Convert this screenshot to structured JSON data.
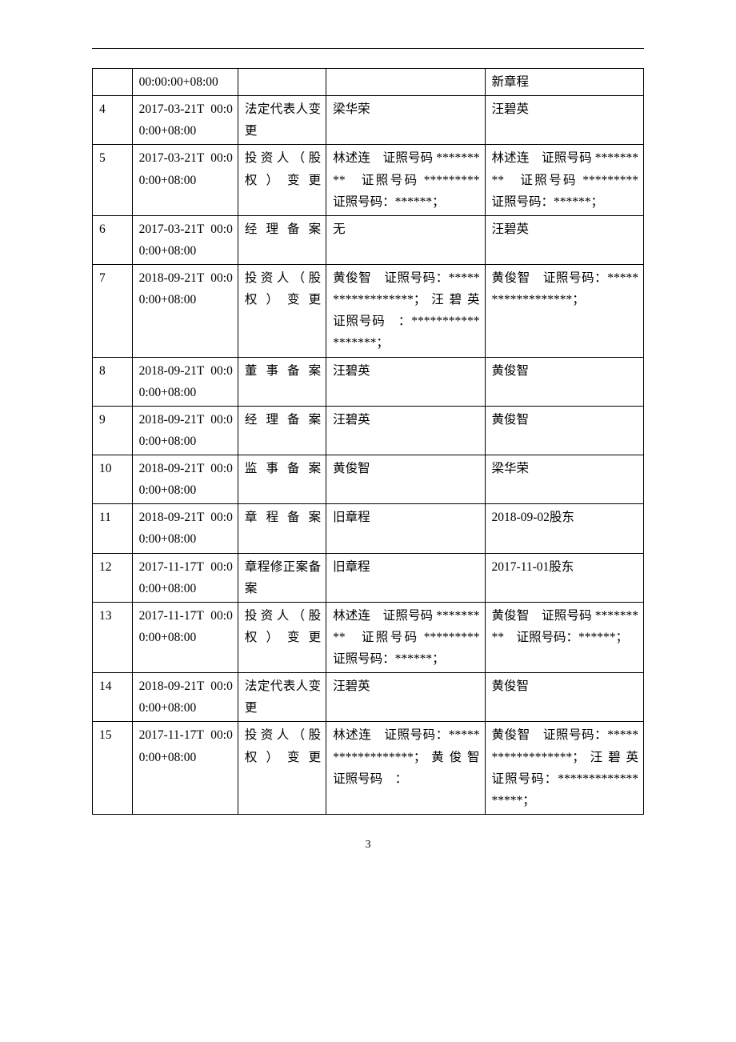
{
  "page_number": "3",
  "table": {
    "rows": [
      {
        "no": "",
        "date": "00:00:00+08:00",
        "type": "",
        "before": "",
        "after": "新章程"
      },
      {
        "no": "4",
        "date": "2017-03-21T 00:00:00+08:00",
        "type": "法定代表人变更",
        "before": "梁华荣",
        "after": "汪碧英"
      },
      {
        "no": "5",
        "date": "2017-03-21T 00:00:00+08:00",
        "type": "投资人（股权）变更",
        "before": "林述连　证照号码 *********　证照号码 *********　证照号码：******；",
        "after": "林述连　证照号码 *********　证照号码 *********　证照号码：******；"
      },
      {
        "no": "6",
        "date": "2017-03-21T 00:00:00+08:00",
        "type": "经理备案",
        "before": "无",
        "after": "汪碧英"
      },
      {
        "no": "7",
        "date": "2018-09-21T 00:00:00+08:00",
        "type": "投资人（股权）变更",
        "before": "黄俊智　证照号码：******************；汪碧英　证照号码　：******************；",
        "after": "黄俊智　证照号码：******************；"
      },
      {
        "no": "8",
        "date": "2018-09-21T 00:00:00+08:00",
        "type": "董事备案",
        "before": "汪碧英",
        "after": "黄俊智"
      },
      {
        "no": "9",
        "date": "2018-09-21T 00:00:00+08:00",
        "type": "经理备案",
        "before": "汪碧英",
        "after": "黄俊智"
      },
      {
        "no": "10",
        "date": "2018-09-21T 00:00:00+08:00",
        "type": "监事备案",
        "before": "黄俊智",
        "after": "梁华荣"
      },
      {
        "no": "11",
        "date": "2018-09-21T 00:00:00+08:00",
        "type": "章程备案",
        "before": "旧章程",
        "after": "2018-09-02股东"
      },
      {
        "no": "12",
        "date": "2017-11-17T 00:00:00+08:00",
        "type": "章程修正案备案",
        "before": "旧章程",
        "after": "2017-11-01股东"
      },
      {
        "no": "13",
        "date": "2017-11-17T 00:00:00+08:00",
        "type": "投资人（股权）变更",
        "before": "林述连　证照号码 *********　证照号码 *********　证照号码：******；",
        "after": "黄俊智　证照号码 *********　证照号码：******；"
      },
      {
        "no": "14",
        "date": "2018-09-21T 00:00:00+08:00",
        "type": "法定代表人变更",
        "before": "汪碧英",
        "after": "黄俊智"
      },
      {
        "no": "15",
        "date": "2017-11-17T 00:00:00+08:00",
        "type": "投资人（股权）变更",
        "before": "林述连　证照号码：******************；黄俊智　证照号码　：",
        "after": "黄俊智　证照号码：******************；汪碧英　证照号码：******************；"
      }
    ]
  }
}
